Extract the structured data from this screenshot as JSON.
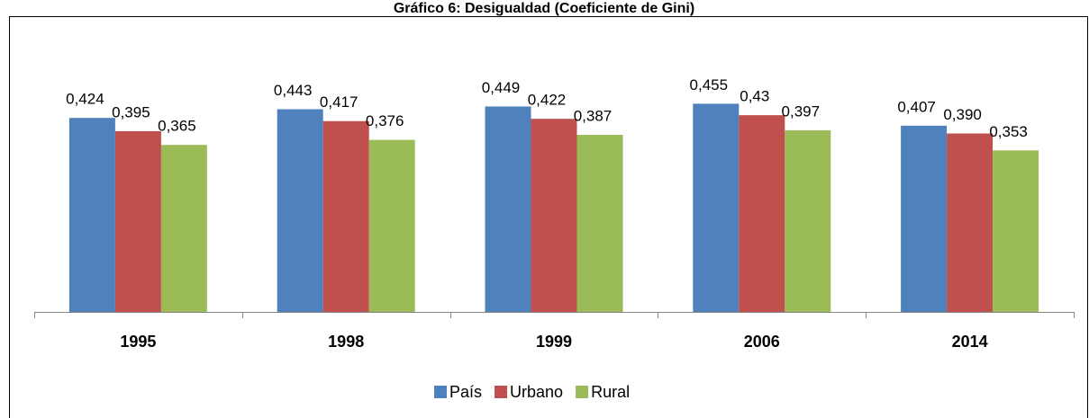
{
  "chart_data": {
    "type": "bar",
    "title": "Gráfico 6: Desigualdad (Coeficiente de Gini)",
    "categories": [
      "1995",
      "1998",
      "1999",
      "2006",
      "2014"
    ],
    "series": [
      {
        "name": "País",
        "color": "#4f81bd",
        "values": [
          0.424,
          0.443,
          0.449,
          0.455,
          0.407
        ],
        "value_labels": [
          "0,424",
          "0,443",
          "0,449",
          "0,455",
          "0,407"
        ]
      },
      {
        "name": "Urbano",
        "color": "#c0504d",
        "values": [
          0.395,
          0.417,
          0.422,
          0.43,
          0.39
        ],
        "value_labels": [
          "0,395",
          "0,417",
          "0,422",
          "0,43",
          "0,390"
        ]
      },
      {
        "name": "Rural",
        "color": "#9bbb59",
        "values": [
          0.365,
          0.376,
          0.387,
          0.397,
          0.353
        ],
        "value_labels": [
          "0,365",
          "0,376",
          "0,387",
          "0,397",
          "0,353"
        ]
      }
    ],
    "legend": "bottom"
  }
}
